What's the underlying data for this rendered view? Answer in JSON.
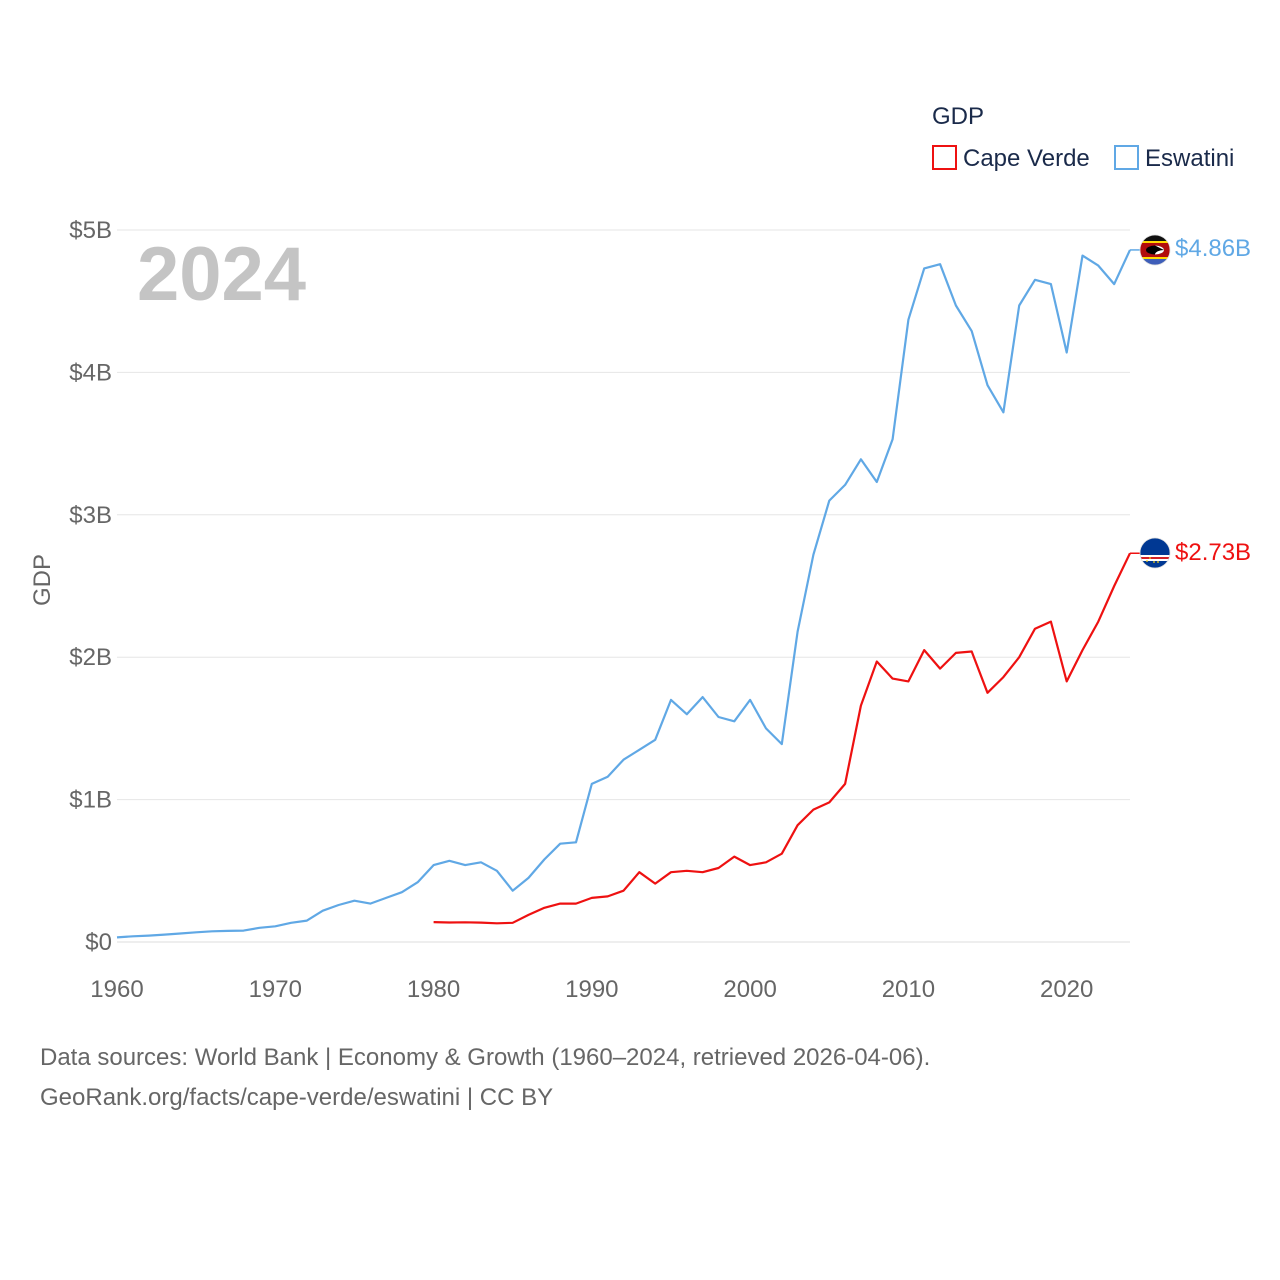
{
  "chart_data": {
    "type": "line",
    "legend_title": "GDP",
    "year_watermark": "2024",
    "ylabel": "GDP",
    "xlabel": "",
    "xlim": [
      1960,
      2024
    ],
    "ylim": [
      0,
      5
    ],
    "x_ticks": [
      1960,
      1970,
      1980,
      1990,
      2000,
      2010,
      2020
    ],
    "y_ticks": [
      {
        "value": 0,
        "label": "$0"
      },
      {
        "value": 1,
        "label": "$1B"
      },
      {
        "value": 2,
        "label": "$2B"
      },
      {
        "value": 3,
        "label": "$3B"
      },
      {
        "value": 4,
        "label": "$4B"
      },
      {
        "value": 5,
        "label": "$5B"
      }
    ],
    "units": "billions of US dollars",
    "legend_position": "top-right",
    "grid": true,
    "series": [
      {
        "name": "Cape Verde",
        "color": "#ee1111",
        "flag": "cape-verde-flag-icon",
        "end_label": "$2.73B",
        "x": [
          1980,
          1981,
          1982,
          1983,
          1984,
          1985,
          1986,
          1987,
          1988,
          1989,
          1990,
          1991,
          1992,
          1993,
          1994,
          1995,
          1996,
          1997,
          1998,
          1999,
          2000,
          2001,
          2002,
          2003,
          2004,
          2005,
          2006,
          2007,
          2008,
          2009,
          2010,
          2011,
          2012,
          2013,
          2014,
          2015,
          2016,
          2017,
          2018,
          2019,
          2020,
          2021,
          2022,
          2023,
          2024
        ],
        "values": [
          0.14,
          0.137,
          0.138,
          0.136,
          0.131,
          0.135,
          0.19,
          0.24,
          0.27,
          0.27,
          0.31,
          0.32,
          0.36,
          0.49,
          0.41,
          0.49,
          0.5,
          0.49,
          0.52,
          0.6,
          0.54,
          0.56,
          0.62,
          0.82,
          0.93,
          0.98,
          1.11,
          1.66,
          1.97,
          1.85,
          1.83,
          2.05,
          1.92,
          2.03,
          2.04,
          1.75,
          1.86,
          2.0,
          2.2,
          2.25,
          1.83,
          2.05,
          2.25,
          2.5,
          2.73
        ]
      },
      {
        "name": "Eswatini",
        "color": "#60a8e5",
        "flag": "eswatini-flag-icon",
        "end_label": "$4.86B",
        "x": [
          1960,
          1961,
          1962,
          1963,
          1964,
          1965,
          1966,
          1967,
          1968,
          1969,
          1970,
          1971,
          1972,
          1973,
          1974,
          1975,
          1976,
          1977,
          1978,
          1979,
          1980,
          1981,
          1982,
          1983,
          1984,
          1985,
          1986,
          1987,
          1988,
          1989,
          1990,
          1991,
          1992,
          1993,
          1994,
          1995,
          1996,
          1997,
          1998,
          1999,
          2000,
          2001,
          2002,
          2003,
          2004,
          2005,
          2006,
          2007,
          2008,
          2009,
          2010,
          2011,
          2012,
          2013,
          2014,
          2015,
          2016,
          2017,
          2018,
          2019,
          2020,
          2021,
          2022,
          2023,
          2024
        ],
        "values": [
          0.032,
          0.04,
          0.045,
          0.052,
          0.06,
          0.068,
          0.075,
          0.078,
          0.08,
          0.1,
          0.11,
          0.135,
          0.15,
          0.22,
          0.26,
          0.29,
          0.27,
          0.31,
          0.35,
          0.42,
          0.54,
          0.57,
          0.54,
          0.56,
          0.5,
          0.36,
          0.45,
          0.58,
          0.69,
          0.7,
          1.11,
          1.16,
          1.28,
          1.35,
          1.42,
          1.7,
          1.6,
          1.72,
          1.58,
          1.55,
          1.7,
          1.5,
          1.39,
          2.18,
          2.72,
          3.1,
          3.21,
          3.39,
          3.23,
          3.53,
          4.37,
          4.73,
          4.76,
          4.47,
          4.29,
          3.91,
          3.72,
          4.47,
          4.65,
          4.62,
          4.14,
          4.82,
          4.75,
          4.62,
          4.86
        ]
      }
    ]
  },
  "footer": {
    "sources_line": "Data sources: World Bank | Economy & Growth (1960–2024, retrieved 2026-04-06).",
    "attribution_line": "GeoRank.org/facts/cape-verde/eswatini | CC BY"
  }
}
